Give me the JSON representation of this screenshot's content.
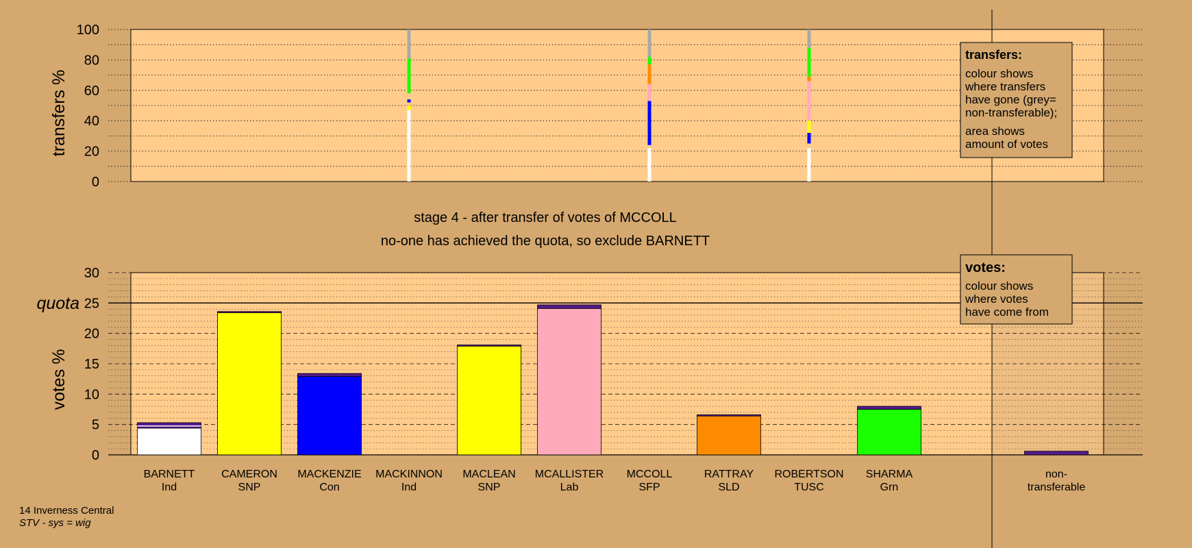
{
  "footer": {
    "constituency": "14 Inverness Central",
    "system": "STV - sys = wig"
  },
  "stage_title": "stage 4 - after transfer of votes of MCCOLL",
  "stage_subtitle": "no-one has achieved the quota, so exclude BARNETT",
  "transfers_box": {
    "heading": "transfers:",
    "lines": [
      "colour shows",
      "where transfers",
      "have gone (grey=",
      "non-transferable);",
      "area shows",
      "amount of votes"
    ]
  },
  "votes_box": {
    "heading": "votes:",
    "lines": [
      "colour shows",
      "where votes",
      "have come from"
    ]
  },
  "colors": {
    "background": "#d4a86f",
    "plot": "#ffcc8c",
    "Ind": "#ffffff",
    "SNP": "#ffff00",
    "Con": "#0000ff",
    "Lab": "#ffaabb",
    "SFP": "#ffffff",
    "SLD": "#ff8c00",
    "TUSC": "#ffffff",
    "Grn": "#1cff00",
    "transfer_band": "#551a8b",
    "nontransferable": "#a8a8a8"
  },
  "chart_data": [
    {
      "type": "bar",
      "subtype": "stacked-transfers",
      "ylabel": "transfers %",
      "ylim": [
        0,
        100
      ],
      "yticks": [
        0,
        20,
        40,
        60,
        80,
        100
      ],
      "grid": true,
      "columns": [
        {
          "candidate": "MACKINNON",
          "segments": [
            {
              "party": "Ind",
              "from": 0,
              "to": 47
            },
            {
              "party": "SNP",
              "from": 47,
              "to": 50
            },
            {
              "party": "Con",
              "from": 52,
              "to": 54
            },
            {
              "party": "Grn",
              "from": 58,
              "to": 81
            },
            {
              "party": "nontransferable",
              "from": 81,
              "to": 100
            }
          ]
        },
        {
          "candidate": "MCCOLL",
          "segments": [
            {
              "party": "Ind",
              "from": 0,
              "to": 22
            },
            {
              "party": "Con",
              "from": 24,
              "to": 53
            },
            {
              "party": "Lab",
              "from": 53,
              "to": 64
            },
            {
              "party": "SLD",
              "from": 64,
              "to": 77
            },
            {
              "party": "Grn",
              "from": 77,
              "to": 82
            },
            {
              "party": "nontransferable",
              "from": 82,
              "to": 100
            }
          ]
        },
        {
          "candidate": "ROBERTSON",
          "segments": [
            {
              "party": "Ind",
              "from": 0,
              "to": 22
            },
            {
              "party": "Con",
              "from": 25,
              "to": 32
            },
            {
              "party": "SNP",
              "from": 32,
              "to": 40
            },
            {
              "party": "Lab",
              "from": 40,
              "to": 66
            },
            {
              "party": "SLD",
              "from": 66,
              "to": 69
            },
            {
              "party": "Grn",
              "from": 69,
              "to": 88
            },
            {
              "party": "nontransferable",
              "from": 88,
              "to": 100
            }
          ]
        }
      ]
    },
    {
      "type": "bar",
      "subtype": "stacked-votes",
      "ylabel": "votes %",
      "ylim": [
        0,
        30
      ],
      "yticks": [
        0,
        5,
        10,
        15,
        20,
        25,
        30
      ],
      "quota": 25,
      "quota_label": "quota",
      "grid": true,
      "categories": [
        {
          "name": "BARNETT",
          "party": "Ind",
          "base": 4.4,
          "transfers": 0.9
        },
        {
          "name": "CAMERON",
          "party": "SNP",
          "base": 23.4,
          "transfers": 0.2
        },
        {
          "name": "MACKENZIE",
          "party": "Con",
          "base": 12.9,
          "transfers": 0.5
        },
        {
          "name": "MACKINNON",
          "party": "Ind",
          "base": 0,
          "transfers": 0
        },
        {
          "name": "MACLEAN",
          "party": "SNP",
          "base": 17.9,
          "transfers": 0.2
        },
        {
          "name": "MCALLISTER",
          "party": "Lab",
          "base": 24.1,
          "transfers": 0.6
        },
        {
          "name": "MCCOLL",
          "party": "SFP",
          "base": 0,
          "transfers": 0
        },
        {
          "name": "RATTRAY",
          "party": "SLD",
          "base": 6.4,
          "transfers": 0.2
        },
        {
          "name": "ROBERTSON",
          "party": "TUSC",
          "base": 0,
          "transfers": 0
        },
        {
          "name": "SHARMA",
          "party": "Grn",
          "base": 7.5,
          "transfers": 0.5
        },
        {
          "name": "non-transferable",
          "label_lines": [
            "non-",
            "transferable"
          ],
          "party": "nontransferable",
          "base": 0,
          "transfers": 0.6
        }
      ]
    }
  ]
}
